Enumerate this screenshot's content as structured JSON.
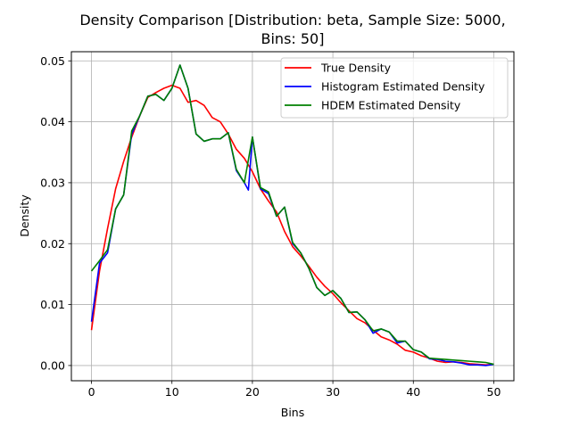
{
  "chart_data": {
    "type": "line",
    "title_lines": [
      "Density Comparison [Distribution: beta, Sample Size: 5000,",
      "Bins: 50]"
    ],
    "xlabel": "Bins",
    "ylabel": "Density",
    "xlim": [
      -2.5,
      52.5
    ],
    "ylim": [
      -0.0025,
      0.0515
    ],
    "xticks": [
      0,
      10,
      20,
      30,
      40,
      50
    ],
    "yticks": [
      0.0,
      0.01,
      0.02,
      0.03,
      0.04,
      0.05
    ],
    "xtick_labels": [
      "0",
      "10",
      "20",
      "30",
      "40",
      "50"
    ],
    "ytick_labels": [
      "0.00",
      "0.01",
      "0.02",
      "0.03",
      "0.04",
      "0.05"
    ],
    "grid": true,
    "legend_position": "top-right",
    "series": [
      {
        "name": "True Density",
        "color": "#ff0000",
        "x": [
          0,
          1,
          2,
          3,
          4,
          5,
          6,
          7,
          8,
          9,
          10,
          11,
          12,
          13,
          14,
          15,
          16,
          17,
          18,
          19,
          20,
          21,
          22,
          23,
          24,
          25,
          26,
          27,
          28,
          29,
          30,
          31,
          32,
          33,
          34,
          35,
          36,
          37,
          38,
          39,
          40,
          41,
          42,
          43,
          44,
          45,
          46,
          47,
          48,
          49,
          50
        ],
        "y": [
          0.0058,
          0.0155,
          0.0225,
          0.029,
          0.0335,
          0.0375,
          0.041,
          0.044,
          0.0448,
          0.0455,
          0.046,
          0.0455,
          0.0432,
          0.0435,
          0.0427,
          0.0407,
          0.04,
          0.038,
          0.0355,
          0.034,
          0.0318,
          0.029,
          0.027,
          0.0252,
          0.022,
          0.0195,
          0.018,
          0.0163,
          0.0145,
          0.013,
          0.0118,
          0.0103,
          0.009,
          0.0077,
          0.007,
          0.0058,
          0.0047,
          0.0042,
          0.0035,
          0.0025,
          0.0022,
          0.0016,
          0.0012,
          0.0007,
          0.0005,
          0.0006,
          0.0005,
          0.0003,
          0.0002,
          0.0001,
          0.0002
        ]
      },
      {
        "name": "Histogram Estimated Density",
        "color": "#0000ff",
        "x": [
          0,
          1,
          2,
          3,
          4,
          5,
          6,
          7,
          8,
          9,
          10,
          11,
          12,
          13,
          14,
          15,
          16,
          17,
          18,
          19,
          19.5,
          20,
          21,
          22,
          23,
          24,
          25,
          26,
          27,
          28,
          29,
          30,
          31,
          32,
          33,
          34,
          35,
          36,
          37,
          38,
          39,
          40,
          41,
          42,
          43,
          44,
          45,
          46,
          47,
          48,
          49,
          50
        ],
        "y": [
          0.0072,
          0.0168,
          0.0185,
          0.0257,
          0.028,
          0.038,
          0.041,
          0.0442,
          0.0445,
          0.0435,
          0.0455,
          0.0493,
          0.0455,
          0.038,
          0.0368,
          0.0372,
          0.0372,
          0.0382,
          0.032,
          0.03,
          0.0288,
          0.0375,
          0.029,
          0.0282,
          0.0245,
          0.026,
          0.02,
          0.0185,
          0.016,
          0.0128,
          0.0115,
          0.0123,
          0.011,
          0.0087,
          0.0088,
          0.0075,
          0.0053,
          0.006,
          0.0055,
          0.0037,
          0.004,
          0.0026,
          0.0022,
          0.0011,
          0.001,
          0.0007,
          0.0006,
          0.0004,
          0.0001,
          0.0001,
          0.0,
          0.0002
        ]
      },
      {
        "name": "HDEM Estimated Density",
        "color": "#008000",
        "x": [
          0,
          1,
          2,
          3,
          4,
          5,
          6,
          7,
          8,
          9,
          10,
          11,
          12,
          13,
          14,
          15,
          16,
          17,
          18,
          19,
          20,
          21,
          22,
          23,
          24,
          25,
          26,
          27,
          28,
          29,
          30,
          31,
          32,
          33,
          34,
          35,
          36,
          37,
          38,
          39,
          40,
          41,
          42,
          43,
          44,
          45,
          46,
          47,
          48,
          49,
          50
        ],
        "y": [
          0.0155,
          0.0172,
          0.019,
          0.0257,
          0.028,
          0.0385,
          0.041,
          0.0442,
          0.0445,
          0.0435,
          0.0455,
          0.0493,
          0.0455,
          0.038,
          0.0368,
          0.0372,
          0.0372,
          0.0382,
          0.0322,
          0.03,
          0.0375,
          0.0292,
          0.0285,
          0.0245,
          0.026,
          0.0202,
          0.0185,
          0.016,
          0.0128,
          0.0115,
          0.0123,
          0.011,
          0.0087,
          0.0088,
          0.0075,
          0.0057,
          0.006,
          0.0055,
          0.004,
          0.004,
          0.0026,
          0.0022,
          0.0012,
          0.0011,
          0.001,
          0.0009,
          0.0008,
          0.0007,
          0.0006,
          0.0005,
          0.0002
        ]
      }
    ]
  }
}
